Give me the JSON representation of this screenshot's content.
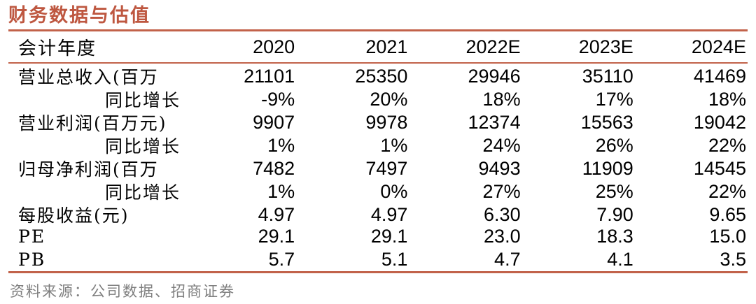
{
  "title": "财务数据与估值",
  "colors": {
    "accent_rule": "#C2624A",
    "title_text": "#BE5740",
    "body_text": "#000000",
    "source_text": "#7F7F7F"
  },
  "table": {
    "header": {
      "label": "会计年度",
      "years": [
        "2020",
        "2021",
        "2022E",
        "2023E",
        "2024E"
      ]
    },
    "rows": [
      {
        "label": "营业总收入(百万",
        "label_align": "left",
        "values": [
          "21101",
          "25350",
          "29946",
          "35110",
          "41469"
        ]
      },
      {
        "label": "同比增长",
        "label_align": "right",
        "values": [
          "-9%",
          "20%",
          "18%",
          "17%",
          "18%"
        ]
      },
      {
        "label": "营业利润(百万元)",
        "label_align": "left",
        "values": [
          "9907",
          "9978",
          "12374",
          "15563",
          "19042"
        ]
      },
      {
        "label": "同比增长",
        "label_align": "right",
        "values": [
          "1%",
          "1%",
          "24%",
          "26%",
          "22%"
        ]
      },
      {
        "label": "归母净利润(百万",
        "label_align": "left",
        "values": [
          "7482",
          "7497",
          "9493",
          "11909",
          "14545"
        ]
      },
      {
        "label": "同比增长",
        "label_align": "right",
        "values": [
          "1%",
          "0%",
          "27%",
          "25%",
          "22%"
        ]
      },
      {
        "label": "每股收益(元)",
        "label_align": "left",
        "values": [
          "4.97",
          "4.97",
          "6.30",
          "7.90",
          "9.65"
        ]
      },
      {
        "label": "PE",
        "label_align": "left",
        "values": [
          "29.1",
          "29.1",
          "23.0",
          "18.3",
          "15.0"
        ]
      },
      {
        "label": "PB",
        "label_align": "left",
        "values": [
          "5.7",
          "5.1",
          "4.7",
          "4.1",
          "3.5"
        ]
      }
    ]
  },
  "footer": {
    "source": "资料来源：公司数据、招商证券"
  }
}
